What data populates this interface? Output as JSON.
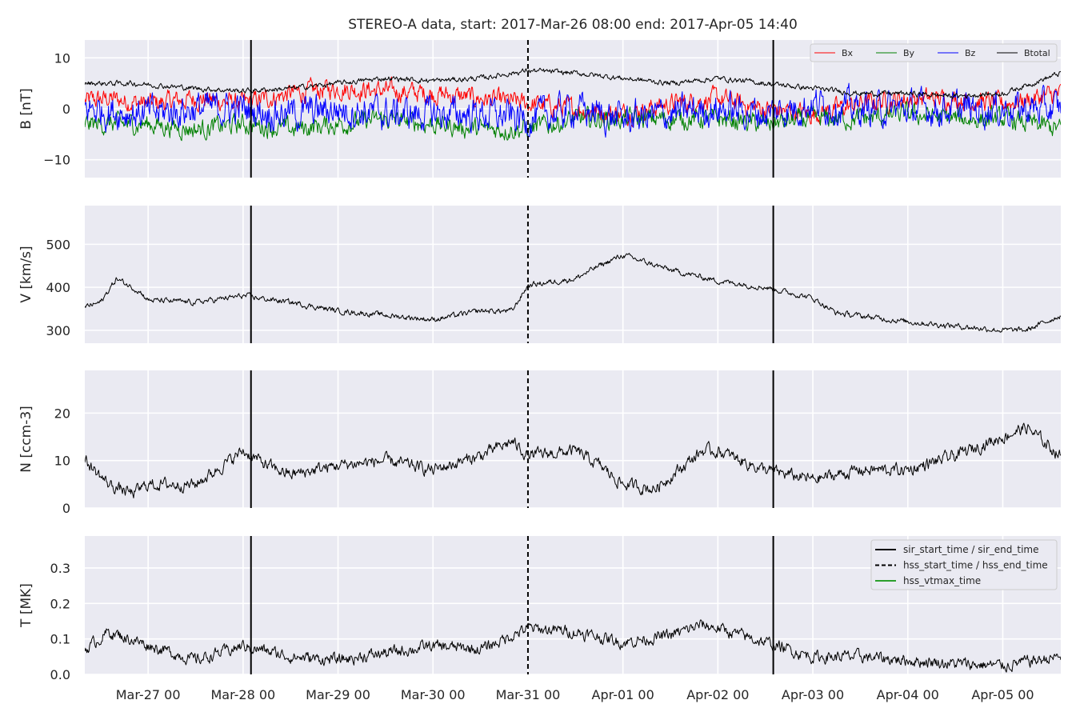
{
  "chart_data": {
    "type": "line",
    "title": "STEREO-A data, start: 2017-Mar-26 08:00  end: 2017-Apr-05 14:40",
    "time_range": [
      "2017-03-26 08:00",
      "2017-04-05 14:40"
    ],
    "x_tick_labels": [
      "Mar-27 00",
      "Mar-28 00",
      "Mar-29 00",
      "Mar-30 00",
      "Mar-31 00",
      "Apr-01 00",
      "Apr-02 00",
      "Apr-03 00",
      "Apr-04 00",
      "Apr-05 00"
    ],
    "grid": true,
    "colors": {
      "Bx": "#ff0000",
      "By": "#008000",
      "Bz": "#0000ff",
      "Btotal": "#000000",
      "hss_vtmax": "#2ca02c",
      "background": "#eaeaf2",
      "gridline": "#ffffff"
    },
    "event_lines": {
      "sir_start_time": "2017-03-28 02:00",
      "sir_end_time": "2017-04-02 14:00",
      "hss_start_time": "2017-03-31 00:00",
      "hss_end_time": "2017-03-31 00:00",
      "legend": [
        {
          "label": "sir_start_time / sir_end_time",
          "style": "solid",
          "color": "#000000"
        },
        {
          "label": "hss_start_time / hss_end_time",
          "style": "dashed",
          "color": "#000000"
        },
        {
          "label": "hss_vtmax_time",
          "style": "solid",
          "color": "#2ca02c"
        }
      ],
      "legend_location": "upper right of T panel"
    },
    "panels": [
      {
        "id": "B",
        "ylabel": "B [nT]",
        "ylim": [
          -13.5,
          13.5
        ],
        "yticks": [
          "−10",
          "0",
          "10"
        ],
        "ytick_values": [
          -10,
          0,
          10
        ],
        "legend": [
          "Bx",
          "By",
          "Bz",
          "Btotal"
        ],
        "legend_location": "upper right",
        "series": [
          {
            "name": "Bx",
            "color": "#ff0000",
            "noise": 1.5,
            "points": [
              [
                "03-26 08:00",
                1.5
              ],
              [
                "03-26 14:00",
                2
              ],
              [
                "03-27 00:00",
                1
              ],
              [
                "03-27 12:00",
                2
              ],
              [
                "03-28 00:00",
                1
              ],
              [
                "03-28 12:00",
                3
              ],
              [
                "03-29 00:00",
                4
              ],
              [
                "03-29 12:00",
                3.5
              ],
              [
                "03-30 00:00",
                3
              ],
              [
                "03-30 12:00",
                2
              ],
              [
                "03-31 00:00",
                1
              ],
              [
                "03-31 12:00",
                0
              ],
              [
                "04-01 00:00",
                -1
              ],
              [
                "04-01 12:00",
                1
              ],
              [
                "04-02 00:00",
                2
              ],
              [
                "04-02 12:00",
                0
              ],
              [
                "04-03 00:00",
                -1
              ],
              [
                "04-03 12:00",
                1
              ],
              [
                "04-04 00:00",
                2
              ],
              [
                "04-04 12:00",
                2
              ],
              [
                "04-05 00:00",
                1
              ],
              [
                "04-05 14:40",
                3
              ]
            ]
          },
          {
            "name": "By",
            "color": "#008000",
            "noise": 1.5,
            "points": [
              [
                "03-26 08:00",
                -3
              ],
              [
                "03-27 00:00",
                -3
              ],
              [
                "03-27 12:00",
                -4
              ],
              [
                "03-28 00:00",
                -3
              ],
              [
                "03-28 12:00",
                -4
              ],
              [
                "03-29 00:00",
                -3
              ],
              [
                "03-29 12:00",
                -2
              ],
              [
                "03-30 00:00",
                -3
              ],
              [
                "03-30 12:00",
                -4
              ],
              [
                "03-31 00:00",
                -4
              ],
              [
                "03-31 12:00",
                -2
              ],
              [
                "04-01 00:00",
                -2
              ],
              [
                "04-01 12:00",
                -2
              ],
              [
                "04-02 00:00",
                -2
              ],
              [
                "04-02 12:00",
                -3
              ],
              [
                "04-03 00:00",
                -2
              ],
              [
                "04-03 12:00",
                -2
              ],
              [
                "04-04 00:00",
                -1
              ],
              [
                "04-04 12:00",
                -2
              ],
              [
                "04-05 00:00",
                -2
              ],
              [
                "04-05 14:40",
                -4
              ]
            ]
          },
          {
            "name": "Bz",
            "color": "#0000ff",
            "noise": 2.5,
            "points": [
              [
                "03-26 08:00",
                0
              ],
              [
                "03-27 00:00",
                -1
              ],
              [
                "03-27 12:00",
                0
              ],
              [
                "03-28 00:00",
                0
              ],
              [
                "03-28 12:00",
                -1
              ],
              [
                "03-29 00:00",
                0
              ],
              [
                "03-29 12:00",
                -1
              ],
              [
                "03-30 00:00",
                -1
              ],
              [
                "03-30 12:00",
                -1
              ],
              [
                "03-31 00:00",
                -2
              ],
              [
                "03-31 12:00",
                0
              ],
              [
                "04-01 00:00",
                -2
              ],
              [
                "04-01 12:00",
                -1
              ],
              [
                "04-02 00:00",
                0
              ],
              [
                "04-02 12:00",
                -1
              ],
              [
                "04-03 00:00",
                1
              ],
              [
                "04-03 12:00",
                0
              ],
              [
                "04-04 00:00",
                0
              ],
              [
                "04-04 12:00",
                0
              ],
              [
                "04-05 00:00",
                0
              ],
              [
                "04-05 14:40",
                0
              ]
            ]
          },
          {
            "name": "Btotal",
            "color": "#000000",
            "noise": 0.4,
            "points": [
              [
                "03-26 08:00",
                5
              ],
              [
                "03-26 20:00",
                5
              ],
              [
                "03-27 12:00",
                4
              ],
              [
                "03-28 00:00",
                3.5
              ],
              [
                "03-28 12:00",
                4
              ],
              [
                "03-29 00:00",
                5
              ],
              [
                "03-29 12:00",
                6
              ],
              [
                "03-30 00:00",
                5.5
              ],
              [
                "03-30 12:00",
                6
              ],
              [
                "03-31 00:00",
                7.5
              ],
              [
                "03-31 12:00",
                7
              ],
              [
                "04-01 00:00",
                6
              ],
              [
                "04-01 12:00",
                5
              ],
              [
                "04-02 00:00",
                6
              ],
              [
                "04-02 12:00",
                5
              ],
              [
                "04-03 00:00",
                4
              ],
              [
                "04-03 12:00",
                3
              ],
              [
                "04-04 00:00",
                3
              ],
              [
                "04-04 12:00",
                2.5
              ],
              [
                "04-05 00:00",
                3
              ],
              [
                "04-05 14:40",
                7
              ]
            ]
          }
        ]
      },
      {
        "id": "V",
        "ylabel": "V [km/s]",
        "ylim": [
          270,
          590
        ],
        "yticks": [
          "300",
          "400",
          "500"
        ],
        "ytick_values": [
          300,
          400,
          500
        ],
        "series": [
          {
            "name": "V",
            "color": "#000000",
            "noise": 5,
            "points": [
              [
                "03-26 08:00",
                355
              ],
              [
                "03-26 12:00",
                365
              ],
              [
                "03-26 16:00",
                420
              ],
              [
                "03-26 22:00",
                390
              ],
              [
                "03-27 00:00",
                370
              ],
              [
                "03-27 12:00",
                365
              ],
              [
                "03-28 00:00",
                380
              ],
              [
                "03-28 12:00",
                365
              ],
              [
                "03-29 00:00",
                345
              ],
              [
                "03-29 12:00",
                335
              ],
              [
                "03-30 00:00",
                325
              ],
              [
                "03-30 12:00",
                345
              ],
              [
                "03-30 20:00",
                345
              ],
              [
                "03-31 00:00",
                405
              ],
              [
                "03-31 12:00",
                420
              ],
              [
                "03-31 18:00",
                450
              ],
              [
                "04-01 00:00",
                475
              ],
              [
                "04-01 12:00",
                440
              ],
              [
                "04-02 00:00",
                415
              ],
              [
                "04-02 12:00",
                400
              ],
              [
                "04-03 00:00",
                375
              ],
              [
                "04-03 06:00",
                340
              ],
              [
                "04-04 00:00",
                320
              ],
              [
                "04-04 12:00",
                310
              ],
              [
                "04-05 00:00",
                300
              ],
              [
                "04-05 06:00",
                300
              ],
              [
                "04-05 14:40",
                335
              ]
            ]
          }
        ]
      },
      {
        "id": "N",
        "ylabel": "N [ccm-3]",
        "ylim": [
          0,
          29
        ],
        "yticks": [
          "0",
          "10",
          "20"
        ],
        "ytick_values": [
          0,
          10,
          20
        ],
        "series": [
          {
            "name": "N",
            "color": "#000000",
            "noise": 1.0,
            "points": [
              [
                "03-26 08:00",
                10
              ],
              [
                "03-26 14:00",
                5
              ],
              [
                "03-26 20:00",
                3
              ],
              [
                "03-27 00:00",
                5
              ],
              [
                "03-27 12:00",
                5
              ],
              [
                "03-28 00:00",
                12
              ],
              [
                "03-28 06:00",
                9
              ],
              [
                "03-28 12:00",
                7
              ],
              [
                "03-29 00:00",
                9
              ],
              [
                "03-29 12:00",
                10
              ],
              [
                "03-30 00:00",
                8
              ],
              [
                "03-30 12:00",
                11
              ],
              [
                "03-30 20:00",
                14
              ],
              [
                "03-31 00:00",
                11
              ],
              [
                "03-31 12:00",
                12
              ],
              [
                "03-31 18:00",
                9
              ],
              [
                "04-01 00:00",
                5
              ],
              [
                "04-01 08:00",
                4
              ],
              [
                "04-01 20:00",
                12
              ],
              [
                "04-02 00:00",
                12
              ],
              [
                "04-02 12:00",
                8
              ],
              [
                "04-03 00:00",
                6
              ],
              [
                "04-03 12:00",
                8
              ],
              [
                "04-04 00:00",
                8
              ],
              [
                "04-04 12:00",
                11
              ],
              [
                "04-05 00:00",
                15
              ],
              [
                "04-05 06:00",
                17
              ],
              [
                "04-05 14:40",
                11
              ]
            ]
          }
        ]
      },
      {
        "id": "T",
        "ylabel": "T [MK]",
        "ylim": [
          0,
          0.39
        ],
        "yticks": [
          "0.0",
          "0.1",
          "0.2",
          "0.3"
        ],
        "ytick_values": [
          0,
          0.1,
          0.2,
          0.3
        ],
        "series": [
          {
            "name": "T",
            "color": "#000000",
            "noise": 0.013,
            "points": [
              [
                "03-26 08:00",
                0.07
              ],
              [
                "03-26 14:00",
                0.12
              ],
              [
                "03-26 22:00",
                0.09
              ],
              [
                "03-27 12:00",
                0.04
              ],
              [
                "03-28 00:00",
                0.08
              ],
              [
                "03-28 12:00",
                0.05
              ],
              [
                "03-29 00:00",
                0.04
              ],
              [
                "03-29 12:00",
                0.06
              ],
              [
                "03-30 00:00",
                0.08
              ],
              [
                "03-30 12:00",
                0.07
              ],
              [
                "03-31 00:00",
                0.13
              ],
              [
                "03-31 12:00",
                0.12
              ],
              [
                "04-01 00:00",
                0.09
              ],
              [
                "04-01 12:00",
                0.11
              ],
              [
                "04-01 20:00",
                0.14
              ],
              [
                "04-02 00:00",
                0.13
              ],
              [
                "04-02 12:00",
                0.09
              ],
              [
                "04-03 00:00",
                0.05
              ],
              [
                "04-03 12:00",
                0.05
              ],
              [
                "04-04 00:00",
                0.04
              ],
              [
                "04-04 12:00",
                0.03
              ],
              [
                "04-05 00:00",
                0.025
              ],
              [
                "04-05 14:40",
                0.05
              ]
            ]
          }
        ]
      }
    ]
  }
}
